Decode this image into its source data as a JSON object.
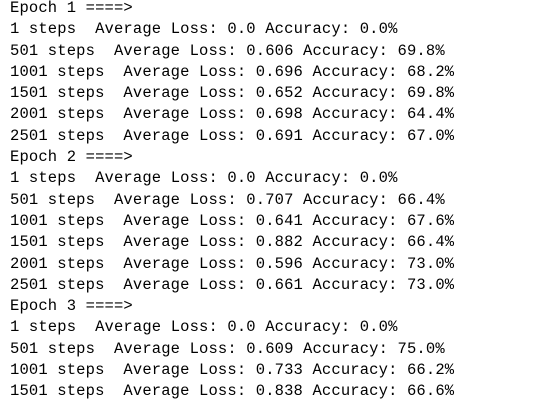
{
  "epochs": [
    {
      "header": "Epoch 1 ====>",
      "rows": [
        {
          "steps": "1 steps  ",
          "loss": "Average Loss: 0.0",
          "acc": "Accuracy: 0.0%"
        },
        {
          "steps": "501 steps  ",
          "loss": "Average Loss: 0.606",
          "acc": "Accuracy: 69.8%"
        },
        {
          "steps": "1001 steps  ",
          "loss": "Average Loss: 0.696",
          "acc": "Accuracy: 68.2%"
        },
        {
          "steps": "1501 steps  ",
          "loss": "Average Loss: 0.652",
          "acc": "Accuracy: 69.8%"
        },
        {
          "steps": "2001 steps  ",
          "loss": "Average Loss: 0.698",
          "acc": "Accuracy: 64.4%"
        },
        {
          "steps": "2501 steps  ",
          "loss": "Average Loss: 0.691",
          "acc": "Accuracy: 67.0%"
        }
      ]
    },
    {
      "header": "Epoch 2 ====>",
      "rows": [
        {
          "steps": "1 steps  ",
          "loss": "Average Loss: 0.0",
          "acc": "Accuracy: 0.0%"
        },
        {
          "steps": "501 steps  ",
          "loss": "Average Loss: 0.707",
          "acc": "Accuracy: 66.4%"
        },
        {
          "steps": "1001 steps  ",
          "loss": "Average Loss: 0.641",
          "acc": "Accuracy: 67.6%"
        },
        {
          "steps": "1501 steps  ",
          "loss": "Average Loss: 0.882",
          "acc": "Accuracy: 66.4%"
        },
        {
          "steps": "2001 steps  ",
          "loss": "Average Loss: 0.596",
          "acc": "Accuracy: 73.0%"
        },
        {
          "steps": "2501 steps  ",
          "loss": "Average Loss: 0.661",
          "acc": "Accuracy: 73.0%"
        }
      ]
    },
    {
      "header": "Epoch 3 ====>",
      "rows": [
        {
          "steps": "1 steps  ",
          "loss": "Average Loss: 0.0",
          "acc": "Accuracy: 0.0%"
        },
        {
          "steps": "501 steps  ",
          "loss": "Average Loss: 0.609",
          "acc": "Accuracy: 75.0%"
        },
        {
          "steps": "1001 steps  ",
          "loss": "Average Loss: 0.733",
          "acc": "Accuracy: 66.2%"
        },
        {
          "steps": "1501 steps  ",
          "loss": "Average Loss: 0.838",
          "acc": "Accuracy: 66.6%"
        }
      ]
    }
  ]
}
